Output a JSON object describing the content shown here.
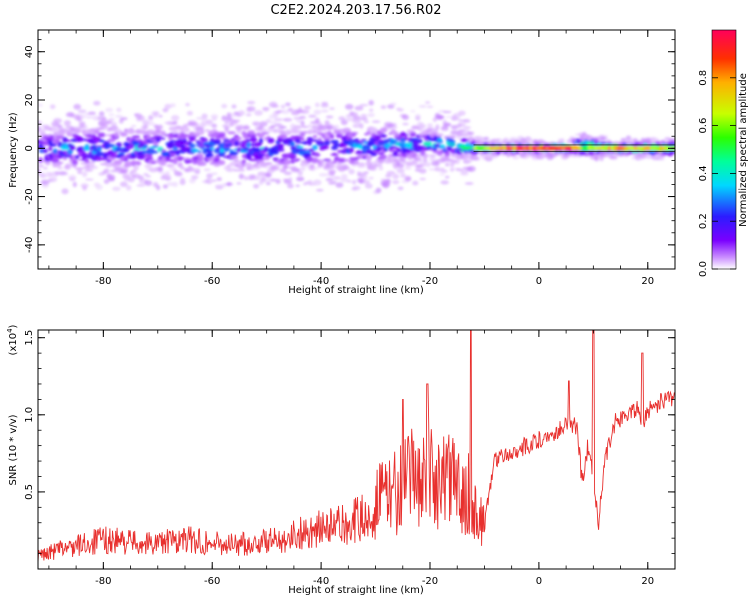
{
  "title": "C2E2.2024.203.17.56.R02",
  "chart_data": [
    {
      "type": "heatmap",
      "xlabel": "Height of straight line (km)",
      "ylabel": "Frequency (Hz)",
      "xlim": [
        -92,
        25
      ],
      "ylim": [
        -50,
        49
      ],
      "x_ticks": [
        -80,
        -60,
        -40,
        -20,
        0,
        20
      ],
      "y_ticks": [
        40,
        20,
        0,
        -20,
        -40
      ],
      "x_tick_labels": [
        "-80",
        "-60",
        "-40",
        "-20",
        "0",
        "20"
      ],
      "y_tick_labels": [
        "40",
        "20",
        "0",
        "-20",
        "-40"
      ],
      "colorbar": {
        "label": "Normalized spectral amplitude",
        "range": [
          0,
          1
        ],
        "ticks": [
          0.0,
          0.2,
          0.4,
          0.6,
          0.8
        ],
        "tick_labels": [
          "0.0",
          "0.2",
          "0.4",
          "0.6",
          "0.8"
        ],
        "colors": [
          "#ffffff",
          "#c98cff",
          "#7a00ff",
          "#2c1cff",
          "#00d8ff",
          "#00ff9a",
          "#2cff00",
          "#c8ff00",
          "#ffb000",
          "#ff3000",
          "#ff005a"
        ]
      },
      "band": [
        {
          "x": -92,
          "center": 0,
          "halfwidth": 6,
          "amplitude": 0.35
        },
        {
          "x": -80,
          "center": 0,
          "halfwidth": 6,
          "amplitude": 0.38
        },
        {
          "x": -60,
          "center": 0,
          "halfwidth": 6,
          "amplitude": 0.36
        },
        {
          "x": -40,
          "center": 0,
          "halfwidth": 6,
          "amplitude": 0.34
        },
        {
          "x": -30,
          "center": 1,
          "halfwidth": 6,
          "amplitude": 0.36
        },
        {
          "x": -20,
          "center": 2,
          "halfwidth": 4,
          "amplitude": 0.4
        },
        {
          "x": -15,
          "center": 1,
          "halfwidth": 3,
          "amplitude": 0.55
        },
        {
          "x": -10,
          "center": 0,
          "halfwidth": 1.5,
          "amplitude": 0.7
        },
        {
          "x": -5,
          "center": 0,
          "halfwidth": 1.2,
          "amplitude": 0.85
        },
        {
          "x": 5,
          "center": 0,
          "halfwidth": 1.2,
          "amplitude": 0.9
        },
        {
          "x": 8,
          "center": 1,
          "halfwidth": 3,
          "amplitude": 0.6
        },
        {
          "x": 14,
          "center": 0,
          "halfwidth": 1.5,
          "amplitude": 0.8
        },
        {
          "x": 25,
          "center": 0,
          "halfwidth": 2,
          "amplitude": 0.7
        }
      ]
    },
    {
      "type": "line",
      "xlabel": "Height of straight line (km)",
      "ylabel": "SNR (10 * v/v)",
      "y_scale_label": "(x10^4)",
      "xlim": [
        -92,
        25
      ],
      "ylim": [
        0,
        1.55
      ],
      "x_ticks": [
        -80,
        -60,
        -40,
        -20,
        0,
        20
      ],
      "y_ticks": [
        0.5,
        1.0,
        1.5
      ],
      "x_tick_labels": [
        "-80",
        "-60",
        "-40",
        "-20",
        "0",
        "20"
      ],
      "y_tick_labels": [
        "0.5",
        "1.0",
        "1.5"
      ],
      "color": "#e8302e",
      "series": [
        {
          "x": [
            -92,
            -88,
            -84,
            -80,
            -76,
            -72,
            -68,
            -64,
            -60,
            -56,
            -52,
            -48,
            -44,
            -40,
            -36,
            -32,
            -28,
            -26,
            -24,
            -22,
            -20,
            -18,
            -16,
            -14,
            -12,
            -11,
            -10,
            -8,
            -6,
            -4,
            -2,
            0,
            2,
            4,
            6,
            7,
            8,
            9,
            10,
            11,
            12,
            14,
            16,
            18,
            19,
            20,
            22,
            24,
            25
          ],
          "y": [
            0.08,
            0.12,
            0.15,
            0.18,
            0.17,
            0.16,
            0.17,
            0.18,
            0.16,
            0.15,
            0.16,
            0.18,
            0.22,
            0.25,
            0.27,
            0.32,
            0.36,
            0.4,
            0.42,
            0.5,
            0.46,
            0.45,
            0.42,
            0.4,
            0.35,
            0.2,
            0.3,
            0.72,
            0.74,
            0.78,
            0.8,
            0.84,
            0.86,
            0.92,
            0.95,
            0.9,
            0.55,
            0.8,
            0.6,
            0.3,
            0.7,
            0.95,
            1.0,
            1.05,
            0.95,
            1.02,
            1.08,
            1.1,
            1.12
          ]
        }
      ],
      "peaks": [
        {
          "x": -12.5,
          "y": 1.55
        },
        {
          "x": 10,
          "y": 1.55
        },
        {
          "x": 19,
          "y": 1.4
        },
        {
          "x": -20.5,
          "y": 1.2
        },
        {
          "x": -25,
          "y": 1.1
        },
        {
          "x": 5.5,
          "y": 1.22
        }
      ]
    }
  ]
}
